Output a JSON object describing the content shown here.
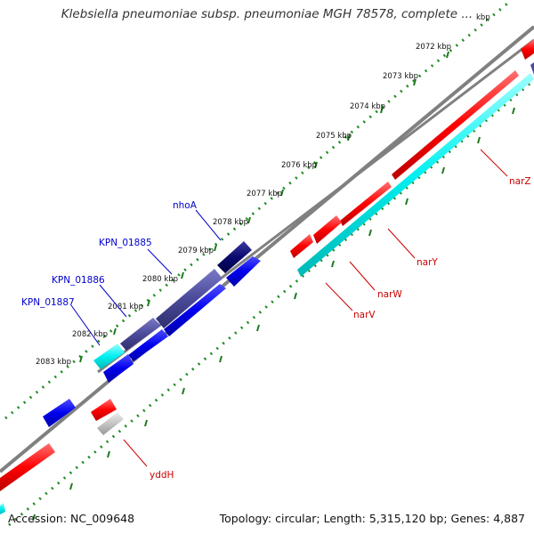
{
  "title": "Klebsiella pneumoniae subsp. pneumoniae MGH 78578, complete ...",
  "footer": {
    "accession": "Accession: NC_009648",
    "summary": "Topology: circular; Length: 5,315,120 bp; Genes: 4,887"
  },
  "ruler": {
    "partial_top_label": "kbp",
    "ticks": [
      "2072 kbp",
      "2073 kbp",
      "2074 kbp",
      "2075 kbp",
      "2076 kbp",
      "2077 kbp",
      "2078 kbp",
      "2079 kbp",
      "2080 kbp",
      "2081 kbp",
      "2082 kbp",
      "2083 kbp"
    ]
  },
  "gene_labels": {
    "nhoA": "nhoA",
    "KPN_01885": "KPN_01885",
    "KPN_01886": "KPN_01886",
    "KPN_01887": "KPN_01887",
    "narZ": "narZ",
    "narY": "narY",
    "narW": "narW",
    "narV": "narV",
    "yddH": "yddH"
  },
  "colors": {
    "backbone": "#808080",
    "ruler_dots": "#228b22",
    "forward_cds": "#ff0000",
    "reverse_cds": "#0000ff",
    "rna_feature": "#00ffff",
    "dark_feature": "#000066",
    "slate_feature": "#484891",
    "pseudo_feature": "#c0c0c0",
    "label_forward": "#cc0000",
    "label_reverse": "#0000cc"
  }
}
